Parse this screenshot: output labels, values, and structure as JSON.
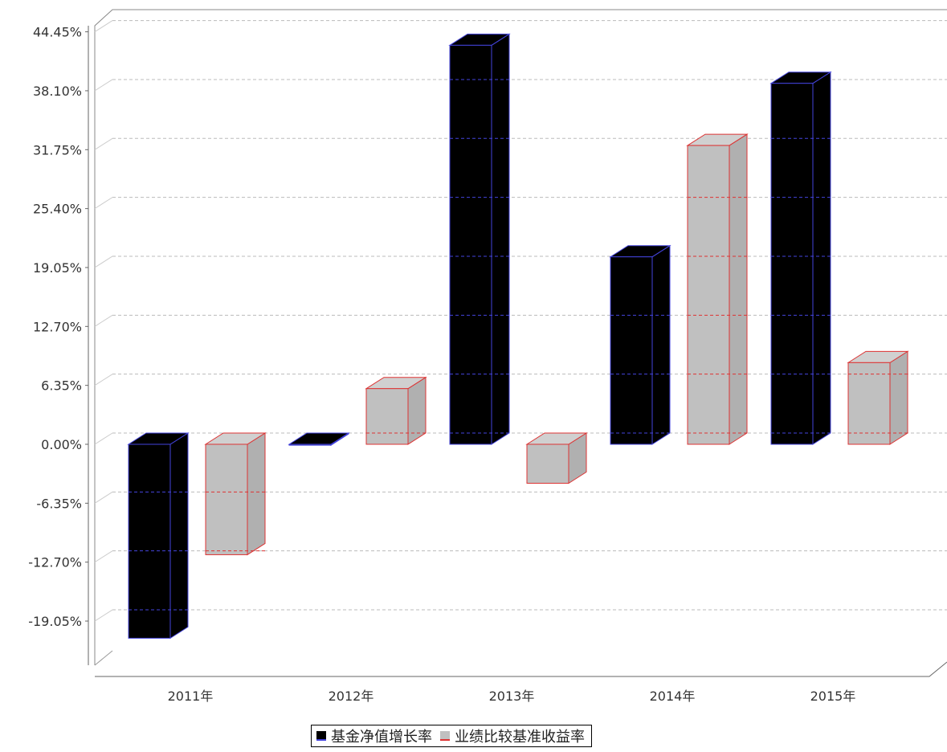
{
  "chart_data": {
    "type": "bar",
    "categories": [
      "2011年",
      "2012年",
      "2013年",
      "2014年",
      "2015年"
    ],
    "series": [
      {
        "name": "基金净值增长率",
        "values": [
          -20.9,
          -0.1,
          43.0,
          20.2,
          38.9
        ],
        "color": "#000000",
        "edge": "#4444dd"
      },
      {
        "name": "业绩比较基准收益率",
        "values": [
          -11.9,
          6.0,
          -4.2,
          32.2,
          8.8
        ],
        "color": "#c0c0c0",
        "edge": "#dd3333"
      }
    ],
    "yticks": [
      "44.45%",
      "38.10%",
      "31.75%",
      "25.40%",
      "19.05%",
      "12.70%",
      "6.35%",
      "0.00%",
      "-6.35%",
      "-12.70%",
      "-19.05%"
    ],
    "ytick_values": [
      44.45,
      38.1,
      31.75,
      25.4,
      19.05,
      12.7,
      6.35,
      0.0,
      -6.35,
      -12.7,
      -19.05
    ],
    "title": "",
    "xlabel": "",
    "ylabel": "",
    "grid": true,
    "legend_position": "bottom",
    "style": "3d-bar"
  }
}
